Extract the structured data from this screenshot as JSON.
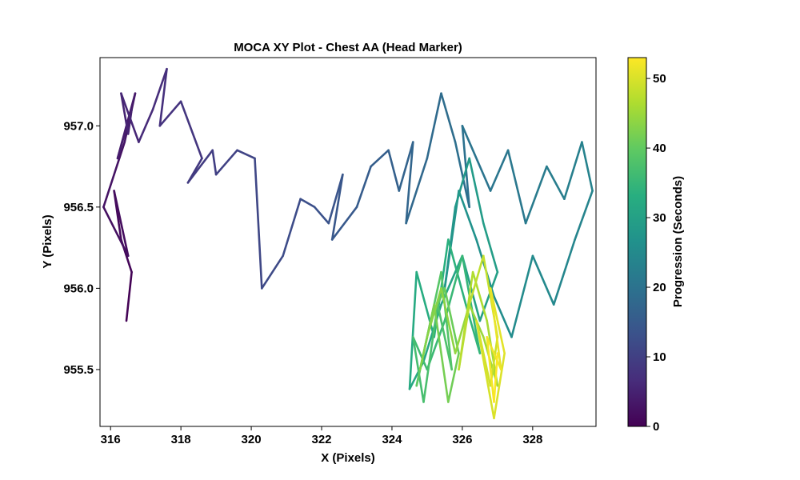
{
  "chart_data": {
    "type": "line",
    "title": "MOCA XY Plot - Chest AA (Head Marker)",
    "xlabel": "X (Pixels)",
    "ylabel": "Y (Pixels)",
    "xlim": [
      315.7,
      329.8
    ],
    "ylim": [
      955.15,
      957.42
    ],
    "xticks": [
      316,
      318,
      320,
      322,
      324,
      326,
      328
    ],
    "xtick_labels": [
      "316",
      "318",
      "320",
      "322",
      "324",
      "326",
      "328"
    ],
    "yticks": [
      955.5,
      956.0,
      956.5,
      957.0
    ],
    "ytick_labels": [
      "955.5",
      "956.0",
      "956.5",
      "957.0"
    ],
    "grid": false,
    "colorbar": {
      "label": "Progression (Seconds)",
      "colormap": "viridis",
      "range": [
        0,
        53
      ],
      "ticks": [
        0,
        10,
        20,
        30,
        40,
        50
      ],
      "tick_labels": [
        "0",
        "10",
        "20",
        "30",
        "40",
        "50"
      ]
    },
    "series": [
      {
        "t": [
          0,
          0.5,
          1,
          1.5,
          2,
          2.5,
          3,
          3.5,
          4,
          4.5,
          5,
          5.5,
          6,
          6.5,
          7,
          7.5,
          8,
          8.5,
          9,
          9.5,
          10,
          10.5,
          11,
          11.5,
          12,
          12.5,
          13,
          13.5,
          14,
          14.5,
          15,
          15.5,
          16,
          16.5,
          17,
          17.5,
          18,
          18.5,
          19,
          19.5,
          20,
          20.5,
          21,
          21.5,
          22,
          22.5,
          23,
          23.5,
          24,
          24.5,
          25,
          25.5,
          26,
          26.5,
          27,
          27.5,
          28,
          28.5,
          29,
          29.5,
          30,
          30.5,
          31,
          31.5,
          32,
          32.5,
          33,
          33.5,
          34,
          34.5,
          35,
          35.5,
          36,
          36.5,
          37,
          37.5,
          38,
          38.5,
          39,
          39.5,
          40,
          40.5,
          41,
          41.5,
          42,
          42.5,
          43,
          43.5,
          44,
          44.5,
          45,
          45.5,
          46,
          46.5,
          47,
          47.5,
          48,
          48.5,
          49,
          49.5,
          50,
          50.5,
          51,
          51.5,
          52,
          52.5,
          53
        ],
        "x": [
          316.45,
          316.6,
          316.3,
          316.1,
          316.5,
          315.8,
          316.4,
          316.7,
          316.2,
          316.6,
          316.5,
          316.3,
          316.8,
          317.2,
          317.6,
          317.4,
          318.0,
          318.6,
          318.2,
          318.9,
          319.0,
          319.6,
          320.1,
          320.3,
          320.9,
          321.4,
          321.8,
          322.2,
          322.6,
          322.3,
          323.0,
          323.4,
          323.9,
          324.2,
          324.6,
          324.4,
          325.0,
          325.4,
          325.8,
          326.2,
          326.0,
          326.8,
          327.3,
          327.8,
          328.4,
          328.9,
          329.4,
          329.7,
          329.2,
          328.6,
          328.0,
          327.4,
          326.9,
          326.4,
          325.9,
          325.5,
          325.8,
          326.2,
          326.6,
          327.0,
          326.5,
          326.0,
          325.4,
          324.9,
          324.5,
          324.7,
          325.2,
          325.6,
          326.1,
          326.5,
          326.0,
          325.5,
          325.0,
          324.6,
          324.9,
          325.3,
          325.7,
          325.4,
          325.0,
          324.7,
          325.1,
          325.5,
          325.9,
          325.6,
          325.2,
          324.8,
          325.0,
          325.4,
          325.8,
          326.2,
          326.6,
          327.0,
          326.7,
          326.3,
          325.9,
          326.2,
          326.6,
          327.0,
          326.8,
          326.4,
          326.9,
          327.2,
          326.8,
          327.1,
          326.7,
          326.9,
          327.0
        ],
        "y": [
          955.8,
          956.1,
          956.3,
          956.6,
          956.2,
          956.5,
          956.9,
          957.2,
          956.8,
          957.1,
          956.95,
          957.2,
          956.9,
          957.1,
          957.35,
          957.0,
          957.15,
          956.8,
          956.65,
          956.85,
          956.7,
          956.85,
          956.8,
          956.0,
          956.2,
          956.55,
          956.5,
          956.4,
          956.7,
          956.3,
          956.5,
          956.75,
          956.85,
          956.6,
          956.9,
          956.4,
          956.8,
          957.2,
          956.9,
          956.5,
          957.0,
          956.6,
          956.85,
          956.4,
          956.75,
          956.55,
          956.9,
          956.6,
          956.3,
          955.9,
          956.2,
          955.7,
          955.95,
          956.3,
          956.6,
          956.0,
          956.5,
          956.8,
          956.4,
          956.1,
          955.8,
          956.2,
          955.9,
          955.55,
          955.38,
          956.1,
          955.7,
          956.3,
          955.9,
          955.6,
          956.2,
          955.8,
          955.5,
          955.7,
          955.3,
          955.9,
          955.5,
          956.1,
          955.7,
          955.4,
          955.8,
          956.0,
          955.6,
          955.3,
          955.9,
          955.5,
          955.7,
          956.0,
          955.6,
          955.9,
          955.7,
          955.4,
          955.8,
          956.1,
          955.5,
          955.9,
          956.2,
          955.7,
          955.4,
          955.8,
          955.2,
          955.6,
          956.0,
          955.5,
          955.7,
          955.3,
          955.6
        ]
      }
    ]
  }
}
